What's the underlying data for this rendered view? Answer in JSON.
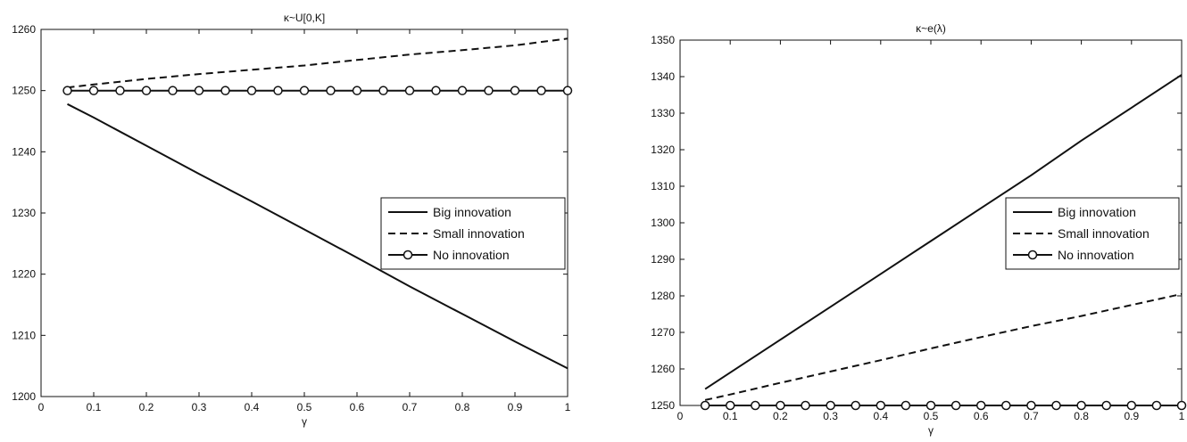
{
  "chart_data": [
    {
      "type": "line",
      "title": "κ~U[0,K]",
      "xlabel": "γ",
      "ylabel": "",
      "xlim": [
        0,
        1
      ],
      "ylim": [
        1200,
        1260
      ],
      "xticks": [
        0,
        0.1,
        0.2,
        0.3,
        0.4,
        0.5,
        0.6,
        0.7,
        0.8,
        0.9,
        1
      ],
      "xtick_labels": [
        "0",
        "0.1",
        "0.2",
        "0.3",
        "0.4",
        "0.5",
        "0.6",
        "0.7",
        "0.8",
        "0.9",
        "1"
      ],
      "yticks": [
        1200,
        1210,
        1220,
        1230,
        1240,
        1250,
        1260
      ],
      "ytick_labels": [
        "1200",
        "1210",
        "1220",
        "1230",
        "1240",
        "1250",
        "1260"
      ],
      "grid": false,
      "legend_position": "right",
      "series": [
        {
          "name": "Big innovation",
          "style": "solid",
          "marker": "none",
          "x": [
            0.05,
            0.1,
            0.2,
            0.3,
            0.4,
            0.5,
            0.6,
            0.7,
            0.8,
            0.9,
            1.0
          ],
          "y": [
            1247.8,
            1245.6,
            1241.0,
            1236.4,
            1231.9,
            1227.3,
            1222.7,
            1218.0,
            1213.5,
            1209.0,
            1204.6
          ]
        },
        {
          "name": "Small innovation",
          "style": "dashed",
          "marker": "none",
          "x": [
            0.05,
            0.1,
            0.2,
            0.3,
            0.4,
            0.5,
            0.6,
            0.7,
            0.8,
            0.9,
            1.0
          ],
          "y": [
            1250.5,
            1251.0,
            1251.9,
            1252.7,
            1253.4,
            1254.1,
            1255.0,
            1255.9,
            1256.6,
            1257.4,
            1258.5
          ]
        },
        {
          "name": "No innovation",
          "style": "solid",
          "marker": "circle",
          "x": [
            0.05,
            0.1,
            0.15,
            0.2,
            0.25,
            0.3,
            0.35,
            0.4,
            0.45,
            0.5,
            0.55,
            0.6,
            0.65,
            0.7,
            0.75,
            0.8,
            0.85,
            0.9,
            0.95,
            1.0
          ],
          "y": [
            1250,
            1250,
            1250,
            1250,
            1250,
            1250,
            1250,
            1250,
            1250,
            1250,
            1250,
            1250,
            1250,
            1250,
            1250,
            1250,
            1250,
            1250,
            1250,
            1250
          ]
        }
      ]
    },
    {
      "type": "line",
      "title": "κ~e(λ)",
      "xlabel": "γ",
      "ylabel": "",
      "xlim": [
        0,
        1
      ],
      "ylim": [
        1250,
        1350
      ],
      "xticks": [
        0,
        0.1,
        0.2,
        0.3,
        0.4,
        0.5,
        0.6,
        0.7,
        0.8,
        0.9,
        1
      ],
      "xtick_labels": [
        "0",
        "0.1",
        "0.2",
        "0.3",
        "0.4",
        "0.5",
        "0.6",
        "0.7",
        "0.8",
        "0.9",
        "1"
      ],
      "yticks": [
        1250,
        1260,
        1270,
        1280,
        1290,
        1300,
        1310,
        1320,
        1330,
        1340,
        1350
      ],
      "ytick_labels": [
        "1250",
        "1260",
        "1270",
        "1280",
        "1290",
        "1300",
        "1310",
        "1320",
        "1330",
        "1340",
        "1350"
      ],
      "grid": false,
      "legend_position": "right",
      "series": [
        {
          "name": "Big innovation",
          "style": "solid",
          "marker": "none",
          "x": [
            0.05,
            0.1,
            0.2,
            0.3,
            0.4,
            0.5,
            0.6,
            0.7,
            0.8,
            0.9,
            1.0
          ],
          "y": [
            1254.5,
            1259.0,
            1268.0,
            1277.0,
            1286.0,
            1295.0,
            1304.0,
            1313.0,
            1322.5,
            1331.5,
            1340.5
          ]
        },
        {
          "name": "Small innovation",
          "style": "dashed",
          "marker": "none",
          "x": [
            0.05,
            0.1,
            0.2,
            0.3,
            0.4,
            0.5,
            0.6,
            0.7,
            0.8,
            0.9,
            1.0
          ],
          "y": [
            1251.5,
            1253.0,
            1256.2,
            1259.3,
            1262.4,
            1265.6,
            1268.7,
            1271.7,
            1274.5,
            1277.5,
            1280.5
          ]
        },
        {
          "name": "No innovation",
          "style": "solid",
          "marker": "circle",
          "x": [
            0.05,
            0.1,
            0.15,
            0.2,
            0.25,
            0.3,
            0.35,
            0.4,
            0.45,
            0.5,
            0.55,
            0.6,
            0.65,
            0.7,
            0.75,
            0.8,
            0.85,
            0.9,
            0.95,
            1.0
          ],
          "y": [
            1250,
            1250,
            1250,
            1250,
            1250,
            1250,
            1250,
            1250,
            1250,
            1250,
            1250,
            1250,
            1250,
            1250,
            1250,
            1250,
            1250,
            1250,
            1250,
            1250
          ]
        }
      ]
    }
  ]
}
